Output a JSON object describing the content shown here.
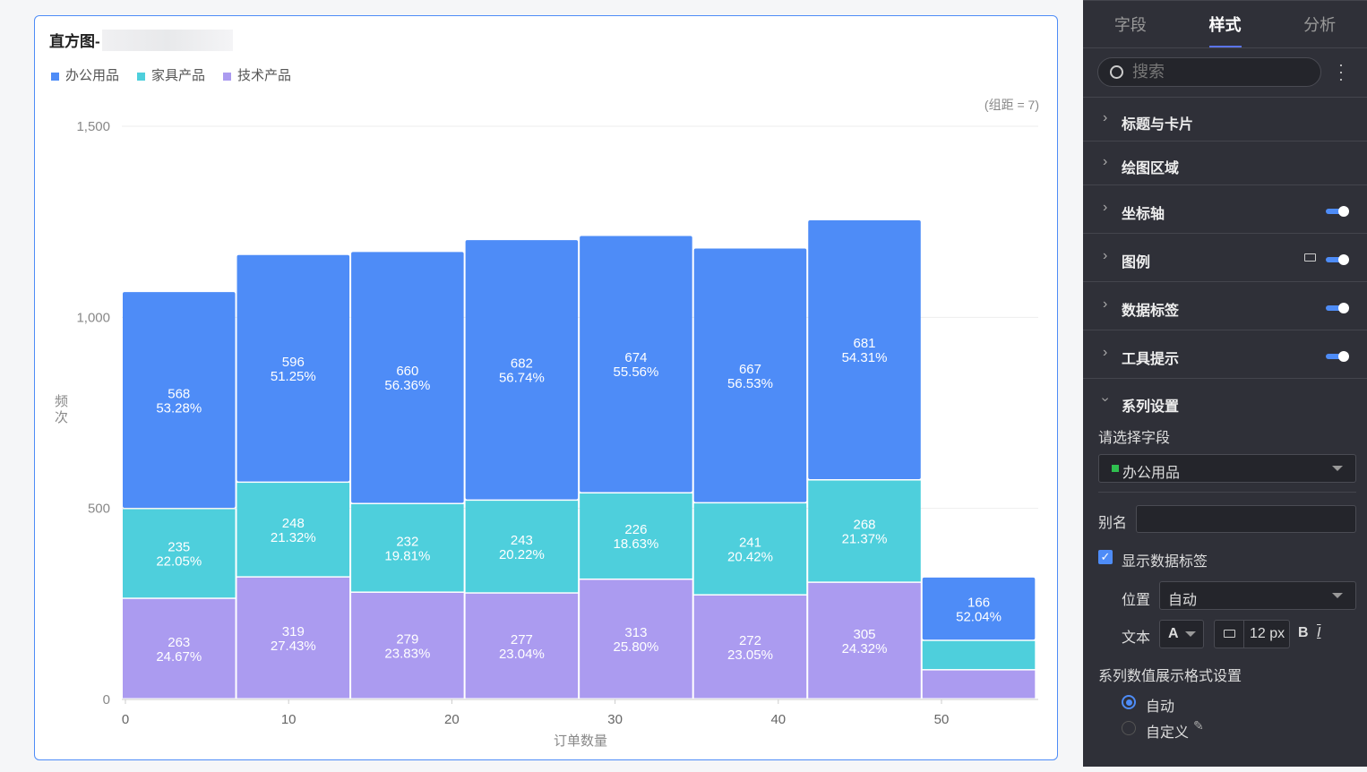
{
  "chart_title": "直方图-",
  "legend": [
    {
      "label": "办公用品",
      "color": "#4e8cf7"
    },
    {
      "label": "家具产品",
      "color": "#4ecfdc"
    },
    {
      "label": "技术产品",
      "color": "#ab9bf0"
    }
  ],
  "bin_note": "(组距 = 7)",
  "chart_data": {
    "type": "bar",
    "stacked": true,
    "title": "直方图-",
    "xlabel": "订单数量",
    "ylabel": "频次",
    "bin_width": 7,
    "bins": [
      [
        0,
        7
      ],
      [
        7,
        14
      ],
      [
        14,
        21
      ],
      [
        21,
        28
      ],
      [
        28,
        35
      ],
      [
        35,
        42
      ],
      [
        42,
        49
      ],
      [
        49,
        56
      ]
    ],
    "xticks": [
      "0",
      "10",
      "20",
      "30",
      "40",
      "50"
    ],
    "xtick_values": [
      0,
      10,
      20,
      30,
      40,
      50
    ],
    "yticks": [
      "0",
      "500",
      "1,000",
      "1,500"
    ],
    "ytick_values": [
      0,
      500,
      1000,
      1500
    ],
    "ylim": [
      0,
      1500
    ],
    "xlim": [
      0,
      56
    ],
    "series": [
      {
        "name": "技术产品",
        "values": [
          263,
          319,
          279,
          277,
          313,
          272,
          305,
          76
        ],
        "pcts": [
          "24.67%",
          "27.43%",
          "23.83%",
          "23.04%",
          "25.80%",
          "23.05%",
          "24.32%",
          ""
        ]
      },
      {
        "name": "家具产品",
        "values": [
          235,
          248,
          232,
          243,
          226,
          241,
          268,
          77
        ],
        "pcts": [
          "22.05%",
          "21.32%",
          "19.81%",
          "20.22%",
          "18.63%",
          "20.42%",
          "21.37%",
          ""
        ]
      },
      {
        "name": "办公用品",
        "values": [
          568,
          596,
          660,
          682,
          674,
          667,
          681,
          166
        ],
        "pcts": [
          "53.28%",
          "51.25%",
          "56.36%",
          "56.74%",
          "55.56%",
          "56.53%",
          "54.31%",
          "52.04%"
        ]
      }
    ]
  },
  "panel": {
    "tabs": [
      "字段",
      "样式",
      "分析"
    ],
    "search_placeholder": "搜索",
    "sections": [
      "标题与卡片",
      "绘图区域",
      "坐标轴",
      "图例",
      "数据标签",
      "工具提示"
    ],
    "series_section": "系列设置",
    "select_field_label": "请选择字段",
    "selected_field": "办公用品",
    "selected_field_color": "#2fbf4f",
    "alias_label": "别名",
    "alias_value": "",
    "show_labels": "显示数据标签",
    "position_label": "位置",
    "position_value": "自动",
    "text_label": "文本",
    "font_color_glyph": "A",
    "font_size": "12 px",
    "bold": "B",
    "italic": "I",
    "format_label": "系列数值展示格式设置",
    "format_auto": "自动",
    "format_custom": "自定义"
  }
}
